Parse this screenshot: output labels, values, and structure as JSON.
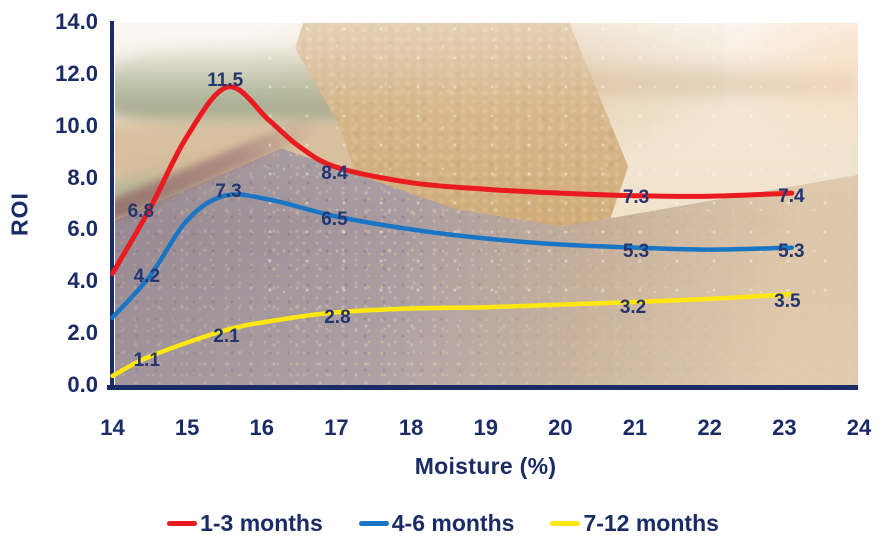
{
  "chart_data": {
    "type": "line",
    "title": "",
    "xlabel": "Moisture (%)",
    "ylabel": "ROI",
    "xlim": [
      14,
      24
    ],
    "ylim": [
      0,
      14
    ],
    "x_ticks": [
      14,
      15,
      16,
      17,
      18,
      19,
      20,
      21,
      22,
      23,
      24
    ],
    "y_ticks": [
      0,
      2,
      4,
      6,
      8,
      10,
      12,
      14
    ],
    "grid": false,
    "legend_position": "bottom",
    "background": "faded photograph of grain pouring from a combine auger onto a grain pile in a field",
    "series": [
      {
        "name": "1-3 months",
        "color": "#ea1a21",
        "points": [
          [
            14,
            4.3
          ],
          [
            14.5,
            6.8
          ],
          [
            15.0,
            9.6
          ],
          [
            15.55,
            11.5
          ],
          [
            16.1,
            10.2
          ],
          [
            16.5,
            9.2
          ],
          [
            17,
            8.4
          ],
          [
            18,
            7.8
          ],
          [
            19,
            7.55
          ],
          [
            20,
            7.4
          ],
          [
            21,
            7.3
          ],
          [
            22,
            7.28
          ],
          [
            23.1,
            7.4
          ]
        ],
        "labels": [
          {
            "x": 14.5,
            "y": 6.8,
            "text": "6.8"
          },
          {
            "x": 15.55,
            "y": 11.5,
            "text": "11.5"
          },
          {
            "x": 17,
            "y": 8.4,
            "text": "8.4"
          },
          {
            "x": 21,
            "y": 7.3,
            "text": "7.3"
          },
          {
            "x": 23,
            "y": 7.35,
            "text": "7.4"
          }
        ]
      },
      {
        "name": "4-6 months",
        "color": "#1a75c5",
        "points": [
          [
            14,
            2.6
          ],
          [
            14.5,
            4.2
          ],
          [
            15.0,
            6.35
          ],
          [
            15.5,
            7.3
          ],
          [
            16.1,
            7.15
          ],
          [
            17,
            6.5
          ],
          [
            18,
            6.0
          ],
          [
            19,
            5.65
          ],
          [
            20,
            5.42
          ],
          [
            21,
            5.3
          ],
          [
            22,
            5.22
          ],
          [
            23.1,
            5.3
          ]
        ],
        "labels": [
          {
            "x": 14.5,
            "y": 4.2,
            "text": "4.2"
          },
          {
            "x": 15.5,
            "y": 7.3,
            "text": "7.3"
          },
          {
            "x": 17,
            "y": 6.5,
            "text": "6.5"
          },
          {
            "x": 21,
            "y": 5.3,
            "text": "5.3"
          },
          {
            "x": 23,
            "y": 5.28,
            "text": "5.3"
          }
        ]
      },
      {
        "name": "7-12 months",
        "color": "#ffe70f",
        "points": [
          [
            14,
            0.35
          ],
          [
            14.5,
            1.1
          ],
          [
            15.5,
            2.1
          ],
          [
            16.2,
            2.5
          ],
          [
            17,
            2.8
          ],
          [
            18,
            2.95
          ],
          [
            19,
            3.0
          ],
          [
            20,
            3.1
          ],
          [
            21,
            3.2
          ],
          [
            22,
            3.32
          ],
          [
            23.1,
            3.5
          ]
        ],
        "labels": [
          {
            "x": 14.5,
            "y": 1.1,
            "text": "1.1"
          },
          {
            "x": 15.5,
            "y": 2.1,
            "text": "2.1"
          },
          {
            "x": 17,
            "y": 2.8,
            "text": "2.8"
          },
          {
            "x": 21,
            "y": 3.2,
            "text": "3.2"
          },
          {
            "x": 23,
            "y": 3.45,
            "text": "3.5"
          }
        ]
      }
    ]
  },
  "colors": {
    "axis": "#1b2b66",
    "tick_text": "#1b2b66",
    "data_label_text": "#22356e"
  }
}
